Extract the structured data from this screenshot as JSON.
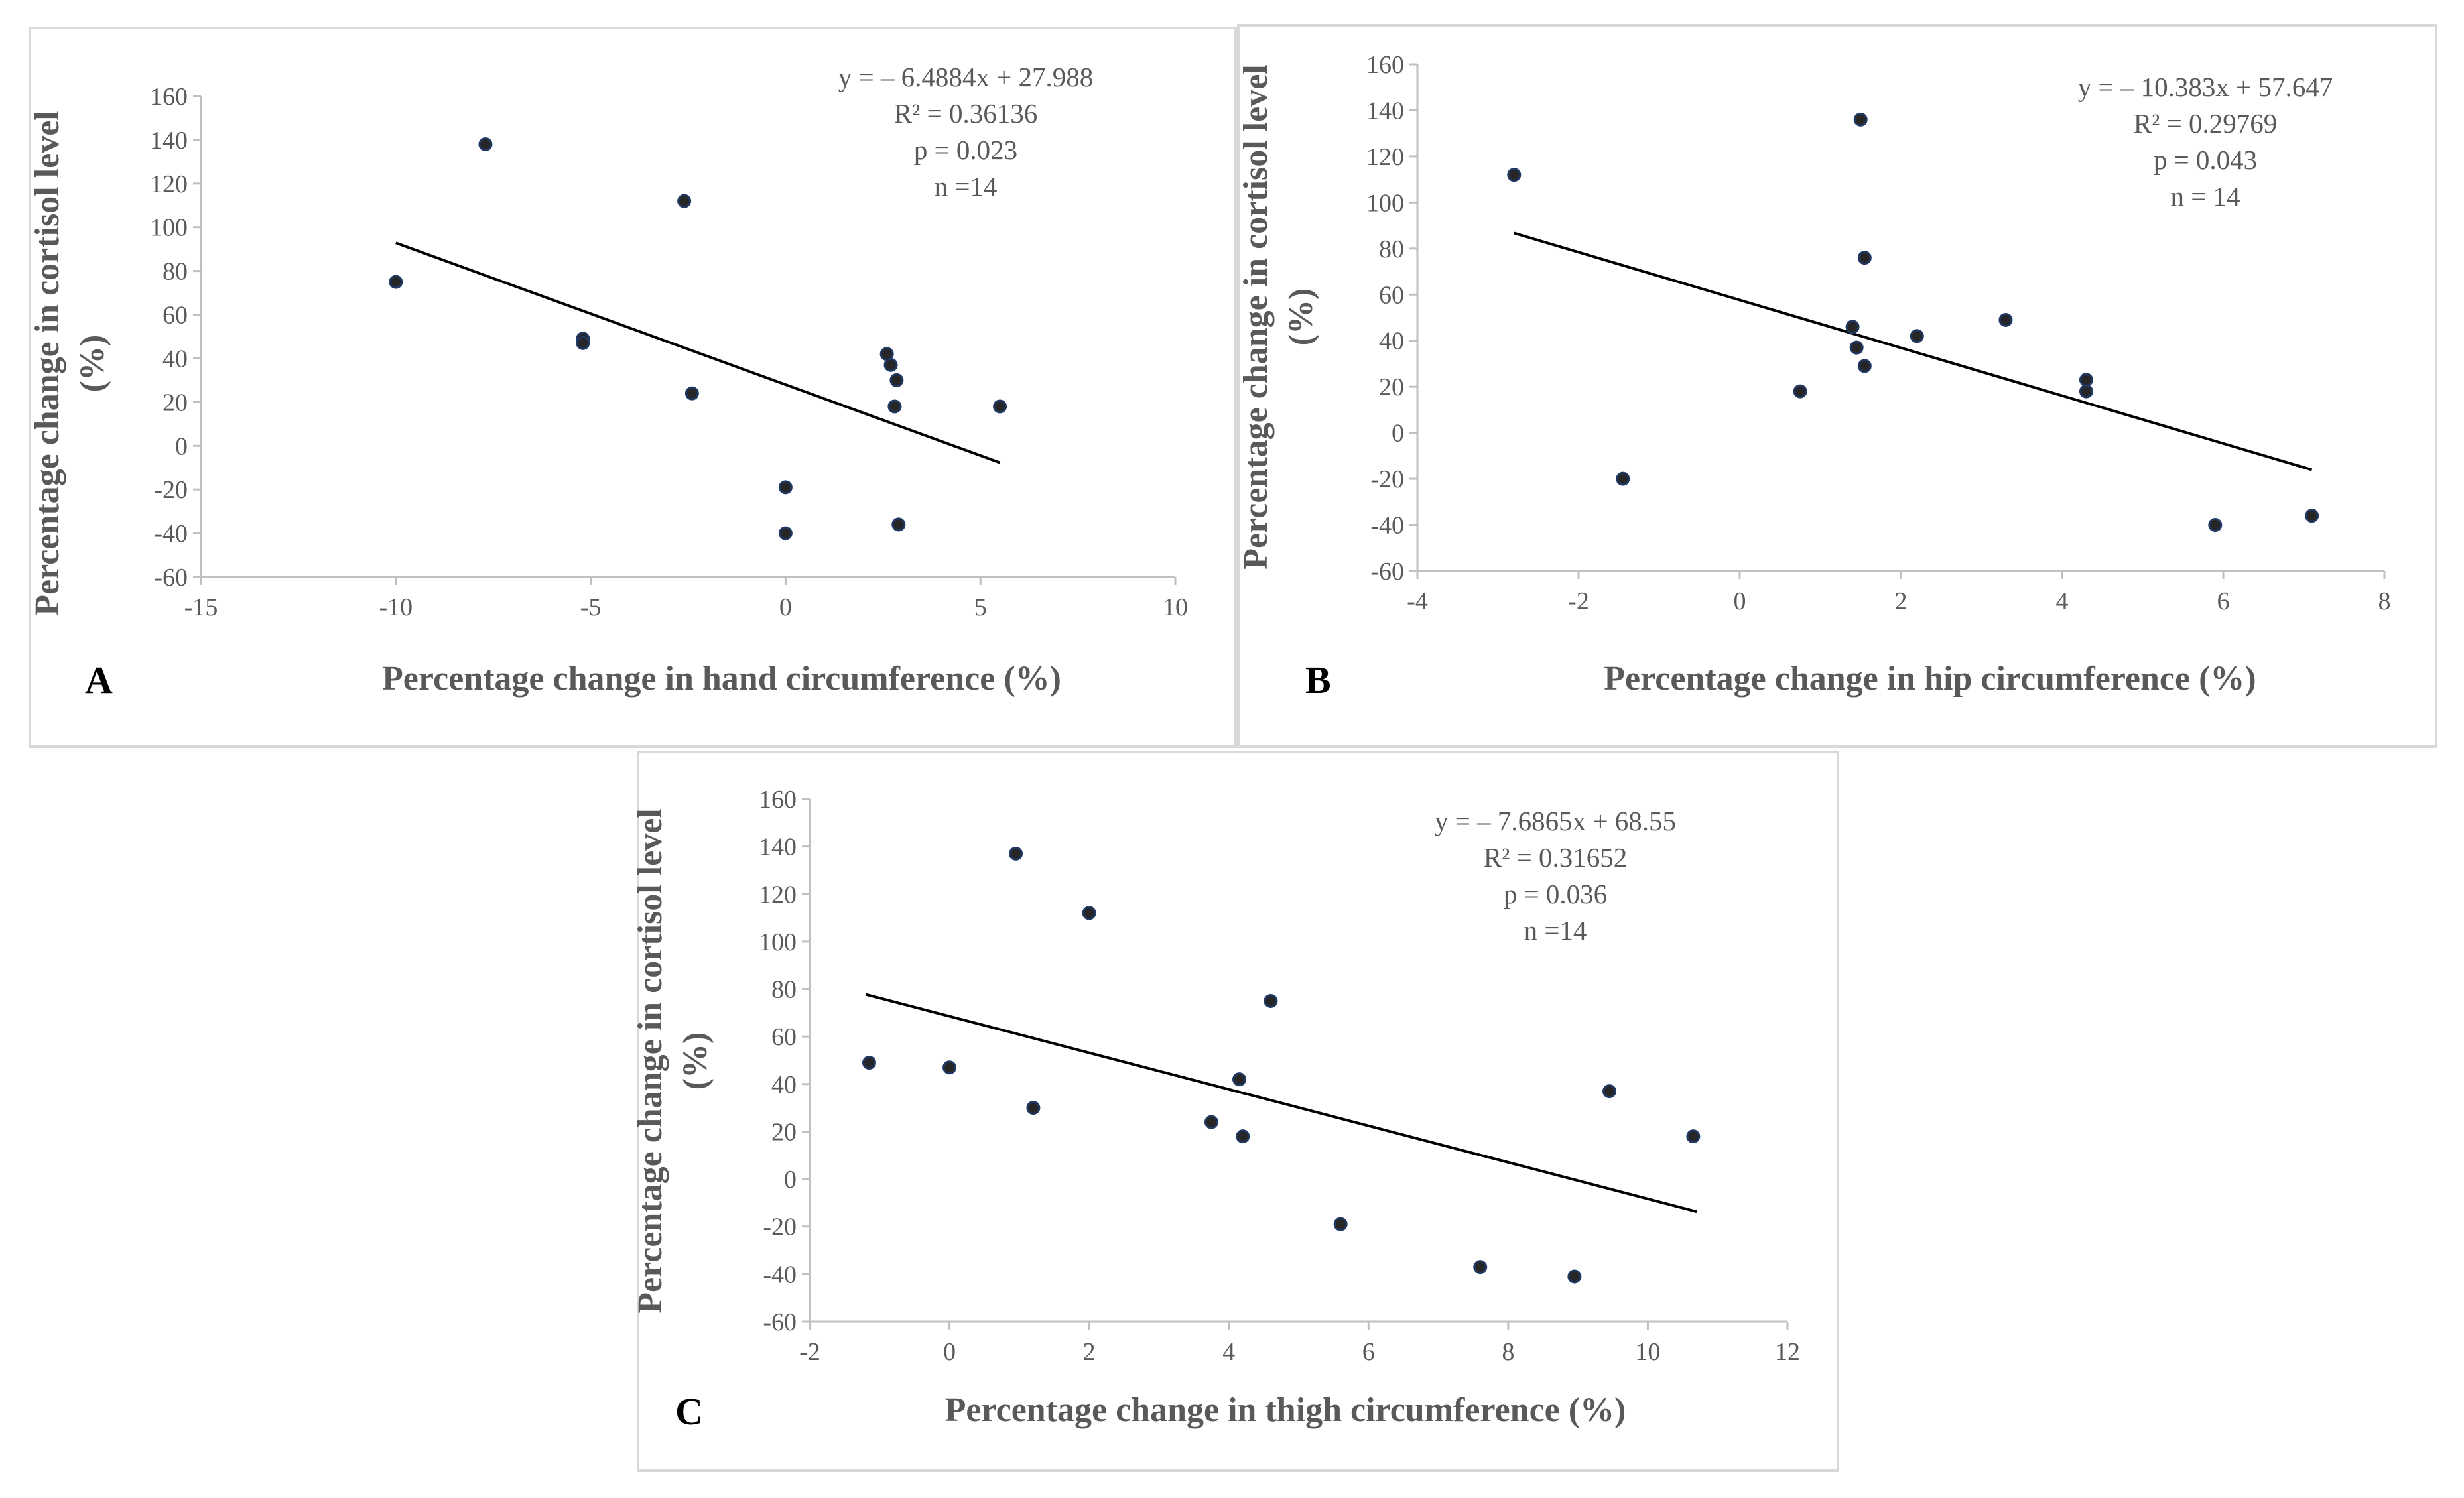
{
  "chart_data": [
    {
      "type": "scatter",
      "panel_label": "A",
      "xlabel": "Percentage change in  hand circumference (%)",
      "ylabel_line1": "Percentage change in cortisol level",
      "ylabel_line2": "(%)",
      "xlim": [
        -15,
        10
      ],
      "ylim": [
        -60,
        160
      ],
      "xticks": [
        -15,
        -10,
        -5,
        0,
        5,
        10
      ],
      "yticks": [
        -60,
        -40,
        -20,
        0,
        20,
        40,
        60,
        80,
        100,
        120,
        140,
        160
      ],
      "points": [
        [
          -10.0,
          75
        ],
        [
          -7.7,
          138
        ],
        [
          -5.2,
          49
        ],
        [
          -5.2,
          47
        ],
        [
          -2.6,
          112
        ],
        [
          -2.4,
          24
        ],
        [
          0.0,
          -19
        ],
        [
          0.0,
          -40
        ],
        [
          2.6,
          42
        ],
        [
          2.7,
          37
        ],
        [
          2.8,
          18
        ],
        [
          2.85,
          30
        ],
        [
          2.9,
          -36
        ],
        [
          5.5,
          18
        ]
      ],
      "trendline": {
        "slope": -6.4884,
        "intercept": 27.988,
        "x_start": -10.0,
        "x_end": 5.5
      },
      "annotation": [
        "y = – 6.4884x + 27.988",
        "R² = 0.36136",
        "p = 0.023",
        "n =14"
      ]
    },
    {
      "type": "scatter",
      "panel_label": "B",
      "xlabel": "Percentage change in hip circumference (%)",
      "ylabel_line1": "Percentage change in cortisol level",
      "ylabel_line2": "(%)",
      "xlim": [
        -4,
        8
      ],
      "ylim": [
        -60,
        160
      ],
      "xticks": [
        -4,
        -2,
        0,
        2,
        4,
        6,
        8
      ],
      "yticks": [
        -60,
        -40,
        -20,
        0,
        20,
        40,
        60,
        80,
        100,
        120,
        140,
        160
      ],
      "points": [
        [
          -2.8,
          112
        ],
        [
          -1.45,
          -20
        ],
        [
          0.75,
          18
        ],
        [
          1.4,
          46
        ],
        [
          1.45,
          37
        ],
        [
          1.5,
          136
        ],
        [
          1.55,
          76
        ],
        [
          1.55,
          29
        ],
        [
          2.2,
          42
        ],
        [
          3.3,
          49
        ],
        [
          4.3,
          23
        ],
        [
          4.3,
          18
        ],
        [
          5.9,
          -40
        ],
        [
          7.1,
          -36
        ]
      ],
      "trendline": {
        "slope": -10.383,
        "intercept": 57.647,
        "x_start": -2.8,
        "x_end": 7.1
      },
      "annotation": [
        "y = – 10.383x + 57.647",
        "R² = 0.29769",
        "p = 0.043",
        "n = 14"
      ]
    },
    {
      "type": "scatter",
      "panel_label": "C",
      "xlabel": "Percentage change in thigh circumference (%)",
      "ylabel_line1": "Percentage change in cortisol level",
      "ylabel_line2": "(%)",
      "xlim": [
        -2,
        12
      ],
      "ylim": [
        -60,
        160
      ],
      "xticks": [
        -2,
        0,
        2,
        4,
        6,
        8,
        10,
        12
      ],
      "yticks": [
        -60,
        -40,
        -20,
        0,
        20,
        40,
        60,
        80,
        100,
        120,
        140,
        160
      ],
      "points": [
        [
          -1.15,
          49
        ],
        [
          0.0,
          47
        ],
        [
          0.95,
          137
        ],
        [
          1.2,
          30
        ],
        [
          2.0,
          112
        ],
        [
          3.75,
          24
        ],
        [
          4.15,
          42
        ],
        [
          4.2,
          18
        ],
        [
          4.6,
          75
        ],
        [
          5.6,
          -19
        ],
        [
          7.6,
          -37
        ],
        [
          8.95,
          -41
        ],
        [
          9.45,
          37
        ],
        [
          10.65,
          18
        ]
      ],
      "trendline": {
        "slope": -7.6865,
        "intercept": 68.55,
        "x_start": -1.2,
        "x_end": 10.7
      },
      "annotation": [
        "y = – 7.6865x + 68.55",
        "R² = 0.31652",
        "p = 0.036",
        "n =14"
      ]
    }
  ]
}
